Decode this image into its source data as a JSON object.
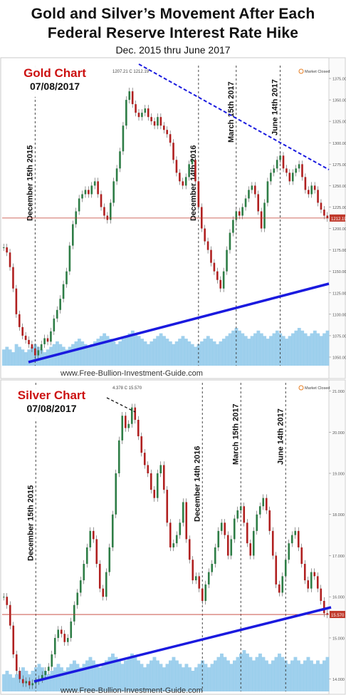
{
  "header": {
    "title_line1": "Gold and Silver’s Movement After Each",
    "title_line2": "Federal Reserve Interest Rate Hike",
    "subtitle": "Dec. 2015 thru June 2017"
  },
  "colors": {
    "gold_label": "#cc1111",
    "trend_up": "#1a1adf",
    "trend_down": "#1a1adf",
    "candle_up": "#2e7d46",
    "candle_down": "#b02020",
    "volume": "#8ec8ea",
    "price_line": "#c0392b"
  },
  "chart_data": [
    {
      "type": "line",
      "title": "Gold Chart",
      "date": "07/08/2017",
      "source": "www.Free-Bullion-Investment-Guide.com",
      "high_annotation": "1207.21 C 1212.19",
      "status": "Market Closed",
      "last_price_label": "1212.19",
      "last_price": 1212.19,
      "ylim": [
        1040,
        1390
      ],
      "yticks": [
        "1375.00",
        "1350.00",
        "1325.00",
        "1300.00",
        "1275.00",
        "1250.00",
        "1225.00",
        "1200.00",
        "1175.00",
        "1150.00",
        "1125.00",
        "1100.00",
        "1075.00",
        "1050.00"
      ],
      "ytick_values": [
        1375,
        1350,
        1325,
        1300,
        1275,
        1250,
        1225,
        1200,
        1175,
        1150,
        1125,
        1100,
        1075,
        1050
      ],
      "events": [
        "December 15th 2015",
        "December 14th 2016",
        "March 15th 2017",
        "June 14th 2017"
      ],
      "event_index": [
        10,
        62,
        74,
        88
      ],
      "series": [
        {
          "values": [
            1178,
            1172,
            1155,
            1130,
            1100,
            1085,
            1075,
            1070,
            1065,
            1060,
            1052,
            1058,
            1065,
            1072,
            1068,
            1080,
            1095,
            1105,
            1118,
            1135,
            1150,
            1180,
            1205,
            1220,
            1235,
            1240,
            1245,
            1240,
            1250,
            1255,
            1240,
            1225,
            1215,
            1210,
            1230,
            1255,
            1270,
            1290,
            1320,
            1350,
            1360,
            1345,
            1335,
            1330,
            1335,
            1340,
            1330,
            1325,
            1320,
            1330,
            1320,
            1315,
            1310,
            1300,
            1280,
            1265,
            1255,
            1250,
            1260,
            1275,
            1280,
            1255,
            1225,
            1200,
            1185,
            1175,
            1160,
            1150,
            1140,
            1130,
            1150,
            1175,
            1195,
            1210,
            1220,
            1215,
            1225,
            1235,
            1245,
            1250,
            1240,
            1220,
            1200,
            1230,
            1255,
            1265,
            1270,
            1280,
            1285,
            1270,
            1265,
            1255,
            1265,
            1270,
            1275,
            1260,
            1245,
            1240,
            1250,
            1245,
            1230,
            1222,
            1215,
            1212
          ]
        }
      ],
      "volume": [
        6,
        7,
        6,
        5,
        8,
        7,
        6,
        5,
        6,
        7,
        8,
        7,
        6,
        5,
        6,
        7,
        8,
        9,
        8,
        7,
        6,
        7,
        8,
        9,
        10,
        9,
        8,
        7,
        8,
        9,
        10,
        11,
        12,
        11,
        10,
        9,
        8,
        9,
        10,
        11,
        12,
        13,
        12,
        11,
        10,
        9,
        8,
        9,
        10,
        11,
        12,
        11,
        10,
        9,
        8,
        9,
        10,
        11,
        10,
        9,
        8,
        7,
        8,
        9,
        10,
        11,
        10,
        9,
        8,
        9,
        10,
        11,
        12,
        13,
        14,
        13,
        12,
        11,
        10,
        11,
        12,
        13,
        12,
        11,
        10,
        11,
        12,
        13,
        12,
        11,
        10,
        11,
        12,
        13,
        14,
        13,
        12,
        11,
        12,
        13,
        12,
        11,
        12,
        13
      ]
    },
    {
      "type": "line",
      "title": "Silver Chart",
      "date": "07/08/2017",
      "source": "www.Free-Bullion-Investment-Guide.com",
      "high_annotation": "4.378 C 15.570",
      "status": "Market Closed",
      "last_price_label": "15.570",
      "last_price": 15.57,
      "ylim": [
        13.7,
        21.2
      ],
      "yticks": [
        "21.000",
        "20.000",
        "19.000",
        "18.000",
        "17.000",
        "16.000",
        "15.000",
        "14.000"
      ],
      "ytick_values": [
        21,
        20,
        19,
        18,
        17,
        16,
        15,
        14
      ],
      "events": [
        "December 15th 2015",
        "December 14th 2016",
        "March 15th 2017",
        "June 14th 2017"
      ],
      "event_index": [
        10,
        62,
        74,
        88
      ],
      "series": [
        {
          "values": [
            16.0,
            15.8,
            15.3,
            14.6,
            14.2,
            14.0,
            13.9,
            13.95,
            13.85,
            13.9,
            13.95,
            14.0,
            14.1,
            14.2,
            14.3,
            14.6,
            15.0,
            15.2,
            15.1,
            14.9,
            15.0,
            15.4,
            15.8,
            16.1,
            16.4,
            16.8,
            17.2,
            17.6,
            17.4,
            16.8,
            16.2,
            16.0,
            16.6,
            17.2,
            18.0,
            19.0,
            19.8,
            20.4,
            20.1,
            20.2,
            20.6,
            20.3,
            19.9,
            19.5,
            19.2,
            19.0,
            18.6,
            18.4,
            19.0,
            19.2,
            18.6,
            17.8,
            17.2,
            17.3,
            17.5,
            17.8,
            18.3,
            17.4,
            16.9,
            16.4,
            16.5,
            16.2,
            15.9,
            16.3,
            16.6,
            16.8,
            17.2,
            17.6,
            17.8,
            17.5,
            17.0,
            17.4,
            17.9,
            18.1,
            18.2,
            17.8,
            17.3,
            17.0,
            17.6,
            18.0,
            18.2,
            18.4,
            18.1,
            17.6,
            17.0,
            16.3,
            16.1,
            16.5,
            16.9,
            17.3,
            17.5,
            17.6,
            17.2,
            16.8,
            16.4,
            16.2,
            16.6,
            16.5,
            16.2,
            15.9,
            15.6,
            15.57
          ]
        }
      ],
      "volume": [
        5,
        6,
        5,
        4,
        5,
        6,
        7,
        6,
        5,
        6,
        7,
        8,
        7,
        6,
        5,
        6,
        7,
        8,
        7,
        6,
        7,
        8,
        9,
        8,
        7,
        8,
        9,
        10,
        9,
        8,
        7,
        8,
        9,
        10,
        11,
        10,
        9,
        8,
        9,
        10,
        11,
        10,
        9,
        8,
        7,
        8,
        9,
        10,
        9,
        8,
        7,
        8,
        9,
        10,
        9,
        8,
        7,
        8,
        7,
        6,
        7,
        8,
        9,
        8,
        7,
        8,
        9,
        10,
        11,
        10,
        9,
        8,
        9,
        10,
        11,
        12,
        11,
        10,
        9,
        10,
        11,
        10,
        9,
        8,
        9,
        10,
        11,
        10,
        9,
        8,
        9,
        10,
        9,
        8,
        9,
        10,
        9,
        8,
        9,
        8,
        9,
        10
      ]
    }
  ]
}
